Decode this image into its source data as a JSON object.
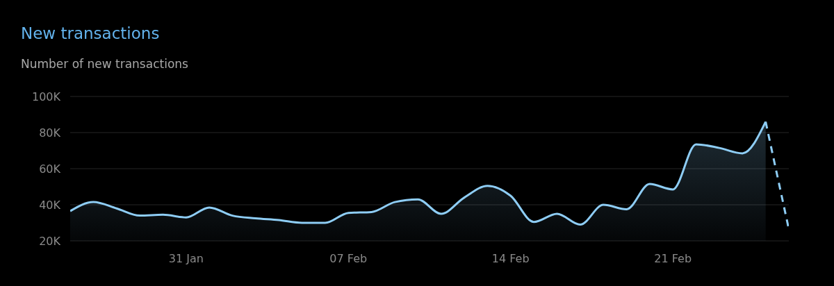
{
  "chart_data": {
    "type": "area",
    "title": "New transactions",
    "subtitle": "Number of new transactions",
    "x": [
      "--01-26",
      "--01-27",
      "--01-28",
      "--01-29",
      "--01-30",
      "--01-31",
      "--02-01",
      "--02-02",
      "--02-03",
      "--02-04",
      "--02-05",
      "--02-06",
      "--02-07",
      "--02-08",
      "--02-09",
      "--02-10",
      "--02-11",
      "--02-12",
      "--02-13",
      "--02-14",
      "--02-15",
      "--02-16",
      "--02-17",
      "--02-18",
      "--02-19",
      "--02-20",
      "--02-21",
      "--02-22",
      "--02-23",
      "--02-24",
      "--02-25",
      "--02-26"
    ],
    "series": [
      {
        "color": "#8ecdf5",
        "line_style": "solid",
        "values": [
          36500,
          41500,
          38000,
          34000,
          34500,
          33000,
          38500,
          34000,
          32500,
          31500,
          30000,
          30000,
          35500,
          36000,
          41500,
          43000,
          35000,
          44000,
          50500,
          45000,
          30500,
          35000,
          29000,
          40000,
          37500,
          51500,
          48500,
          73500,
          71500,
          68500,
          86000,
          null
        ]
      },
      {
        "type": "line",
        "color": "#8ecdf5",
        "line_style": "dashed",
        "values": [
          null,
          null,
          null,
          null,
          null,
          null,
          null,
          null,
          null,
          null,
          null,
          null,
          null,
          null,
          null,
          null,
          null,
          null,
          null,
          null,
          null,
          null,
          null,
          null,
          null,
          null,
          null,
          null,
          null,
          null,
          86000,
          26500
        ]
      }
    ],
    "xlim": [
      "--01-26",
      "--02-26"
    ],
    "xticks": [
      {
        "value": "--01-31",
        "label": "31 Jan"
      },
      {
        "value": "--02-07",
        "label": "07 Feb"
      },
      {
        "value": "--02-14",
        "label": "14 Feb"
      },
      {
        "value": "--02-21",
        "label": "21 Feb"
      }
    ],
    "ylim": [
      20000,
      100000
    ],
    "yticks": [
      {
        "value": 20000,
        "label": "20K"
      },
      {
        "value": 40000,
        "label": "40K"
      },
      {
        "value": 60000,
        "label": "60K"
      },
      {
        "value": 80000,
        "label": "80K"
      },
      {
        "value": 100000,
        "label": "100K"
      }
    ],
    "grid": "y",
    "marker": "none"
  }
}
